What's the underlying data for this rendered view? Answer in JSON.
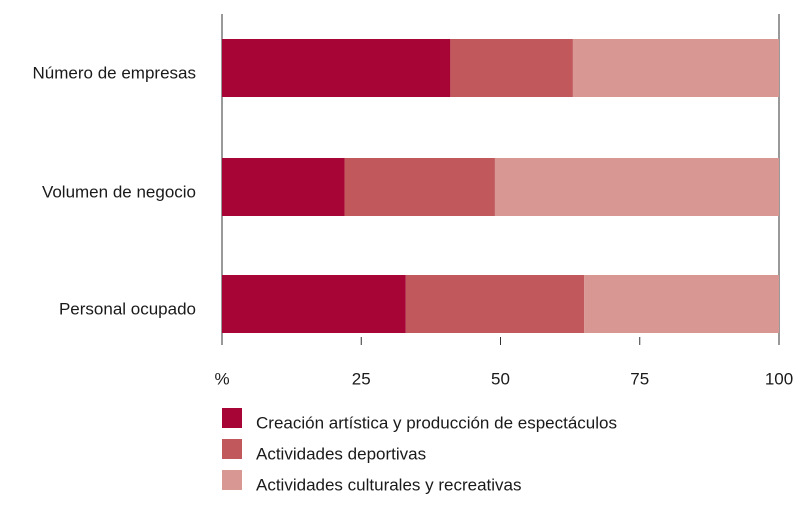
{
  "chart_data": {
    "type": "stacked_bar_horizontal",
    "categories": [
      "Número de empresas",
      "Volumen de negocio",
      "Personal ocupado"
    ],
    "series": [
      {
        "name": "Creación artística y producción de espectáculos",
        "color": "#a70535",
        "values": [
          41,
          22,
          33
        ]
      },
      {
        "name": "Actividades deportivas",
        "color": "#c0585c",
        "values": [
          22,
          27,
          32
        ]
      },
      {
        "name": "Actividades culturales y recreativas",
        "color": "#d89793",
        "values": [
          37,
          51,
          35
        ]
      }
    ],
    "xlim": [
      0,
      100
    ],
    "xticks": [
      {
        "value": 0,
        "label": "%"
      },
      25,
      50,
      75,
      100
    ],
    "legend": "bottom"
  }
}
